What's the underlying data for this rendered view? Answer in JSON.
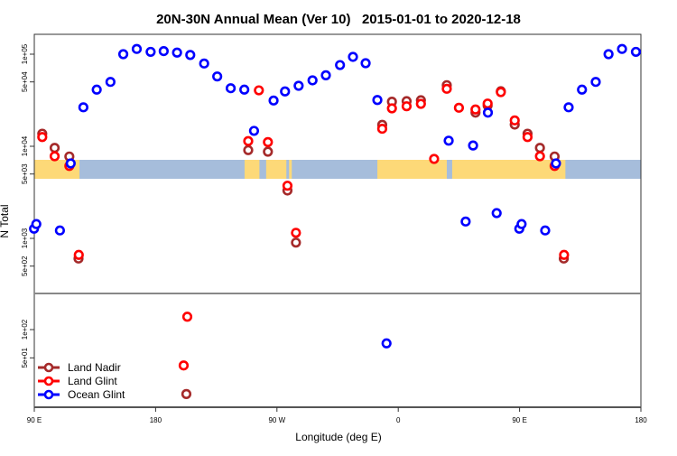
{
  "chart_data": {
    "type": "scatter",
    "title": "20N-30N Annual Mean (Ver 10)   2015-01-01 to 2020-12-18",
    "xlabel": "Longitude (deg E)",
    "ylabel": "N Total",
    "x_ticks": [
      "90 E",
      "180",
      "90 W",
      "0",
      "90 E",
      "180"
    ],
    "x_tick_values": [
      90,
      180,
      270,
      360,
      450,
      540
    ],
    "xlim_unwrapped": [
      90,
      540
    ],
    "y_scale": "log",
    "upper_panel": {
      "y_ticks": [
        "1e+05",
        "5e+04",
        "1e+04",
        "5e+03",
        "1e+03",
        "5e+02"
      ],
      "y_tick_values": [
        100000,
        50000,
        10000,
        5000,
        1000,
        500
      ]
    },
    "lower_panel": {
      "y_ticks": [
        "1e+02",
        "5e+01"
      ],
      "y_tick_values": [
        100,
        50
      ]
    },
    "background_map": "land/ocean strip 20N-30N",
    "legend_position": "bottom-left",
    "grid": false,
    "series": [
      {
        "name": "Land Nadir",
        "color": "#a52a2a",
        "points": [
          [
            95.9,
            13700
          ],
          [
            105.1,
            9620
          ],
          [
            116,
            7750
          ],
          [
            122.8,
            604
          ],
          [
            -111.3,
            9080
          ],
          [
            -96.7,
            8730
          ],
          [
            -82.2,
            3310
          ],
          [
            -75.9,
            900
          ],
          [
            -157.2,
            20.6
          ],
          [
            -11.9,
            17100
          ],
          [
            -4.7,
            30500
          ],
          [
            6.2,
            30900
          ],
          [
            16.8,
            31600
          ],
          [
            36,
            46100
          ],
          [
            57.3,
            23200
          ],
          [
            66.3,
            27700
          ],
          [
            76.1,
            39600
          ],
          [
            86.4,
            17200
          ]
        ]
      },
      {
        "name": "Land Glint",
        "color": "#ff0000",
        "points": [
          [
            95.9,
            12600
          ],
          [
            105.1,
            7800
          ],
          [
            116,
            6120
          ],
          [
            123,
            662
          ],
          [
            -111.3,
            11400
          ],
          [
            -103.4,
            40500
          ],
          [
            -96.7,
            11100
          ],
          [
            -82.2,
            3730
          ],
          [
            -75.9,
            1150
          ],
          [
            -156.5,
            137
          ],
          [
            -159.2,
            41.5
          ],
          [
            -11.9,
            15500
          ],
          [
            -4.7,
            25800
          ],
          [
            6.2,
            27200
          ],
          [
            16.8,
            28900
          ],
          [
            26.6,
            7290
          ],
          [
            36,
            42100
          ],
          [
            45,
            26200
          ],
          [
            57.3,
            25100
          ],
          [
            66.3,
            29100
          ],
          [
            76.1,
            38700
          ],
          [
            86.4,
            19100
          ]
        ]
      },
      {
        "name": "Ocean Glint",
        "color": "#0000ff",
        "points": [
          [
            50,
            1524
          ],
          [
            73,
            1880
          ],
          [
            89.8,
            1273
          ],
          [
            91.5,
            1430
          ],
          [
            109,
            1220
          ],
          [
            117,
            6515
          ],
          [
            126.4,
            26500
          ],
          [
            136.3,
            41200
          ],
          [
            146.5,
            50000
          ],
          [
            156,
            100000
          ],
          [
            166,
            114000
          ],
          [
            176.3,
            106000
          ],
          [
            -174,
            108000
          ],
          [
            -164.1,
            104000
          ],
          [
            -154.3,
            98000
          ],
          [
            -144,
            79200
          ],
          [
            -134.3,
            57300
          ],
          [
            -124.3,
            42700
          ],
          [
            -114.2,
            41200
          ],
          [
            -107,
            14700
          ],
          [
            -92.5,
            31400
          ],
          [
            -84,
            39400
          ],
          [
            -73.9,
            45400
          ],
          [
            -63.6,
            52000
          ],
          [
            -53.7,
            59000
          ],
          [
            -43.2,
            76200
          ],
          [
            -33.6,
            93500
          ],
          [
            -24.2,
            79800
          ],
          [
            -15.5,
            31800
          ],
          [
            -8.7,
            71.3
          ],
          [
            37.4,
            11500
          ],
          [
            55.5,
            10200
          ],
          [
            66.5,
            23200
          ]
        ]
      }
    ]
  },
  "map_colors": {
    "ocean": "#a6bddb",
    "land": "#fdd978"
  }
}
